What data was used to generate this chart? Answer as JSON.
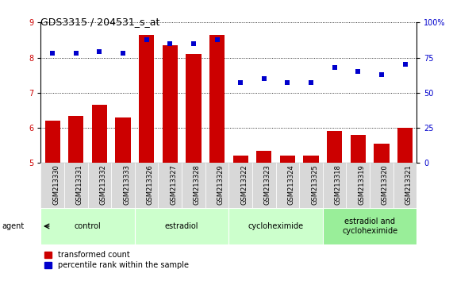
{
  "title": "GDS3315 / 204531_s_at",
  "samples": [
    "GSM213330",
    "GSM213331",
    "GSM213332",
    "GSM213333",
    "GSM213326",
    "GSM213327",
    "GSM213328",
    "GSM213329",
    "GSM213322",
    "GSM213323",
    "GSM213324",
    "GSM213325",
    "GSM213318",
    "GSM213319",
    "GSM213320",
    "GSM213321"
  ],
  "bar_values": [
    6.2,
    6.35,
    6.65,
    6.3,
    8.65,
    8.35,
    8.1,
    8.65,
    5.2,
    5.35,
    5.2,
    5.2,
    5.9,
    5.8,
    5.55,
    6.0
  ],
  "dot_values": [
    78,
    78,
    79,
    78,
    88,
    85,
    85,
    88,
    57,
    60,
    57,
    57,
    68,
    65,
    63,
    70
  ],
  "bar_color": "#cc0000",
  "dot_color": "#0000cc",
  "ylim_left": [
    5,
    9
  ],
  "ylim_right": [
    0,
    100
  ],
  "yticks_left": [
    5,
    6,
    7,
    8,
    9
  ],
  "yticks_right": [
    0,
    25,
    50,
    75,
    100
  ],
  "ytick_labels_right": [
    "0",
    "25",
    "50",
    "75",
    "100%"
  ],
  "groups": [
    {
      "label": "control",
      "start": 0,
      "end": 3
    },
    {
      "label": "estradiol",
      "start": 4,
      "end": 7
    },
    {
      "label": "cycloheximide",
      "start": 8,
      "end": 11
    },
    {
      "label": "estradiol and\ncycloheximide",
      "start": 12,
      "end": 15
    }
  ],
  "group_colors": [
    "#ccffcc",
    "#ccffcc",
    "#ccffcc",
    "#99ee99"
  ],
  "agent_label": "agent",
  "legend_bar_label": "transformed count",
  "legend_dot_label": "percentile rank within the sample",
  "bar_width": 0.65,
  "background_color": "#ffffff",
  "plot_bg_color": "#ffffff",
  "axis_color_left": "#cc0000",
  "axis_color_right": "#0000cc",
  "tick_fontsize": 7,
  "sample_fontsize": 6,
  "group_fontsize": 7,
  "title_fontsize": 9,
  "legend_fontsize": 7
}
